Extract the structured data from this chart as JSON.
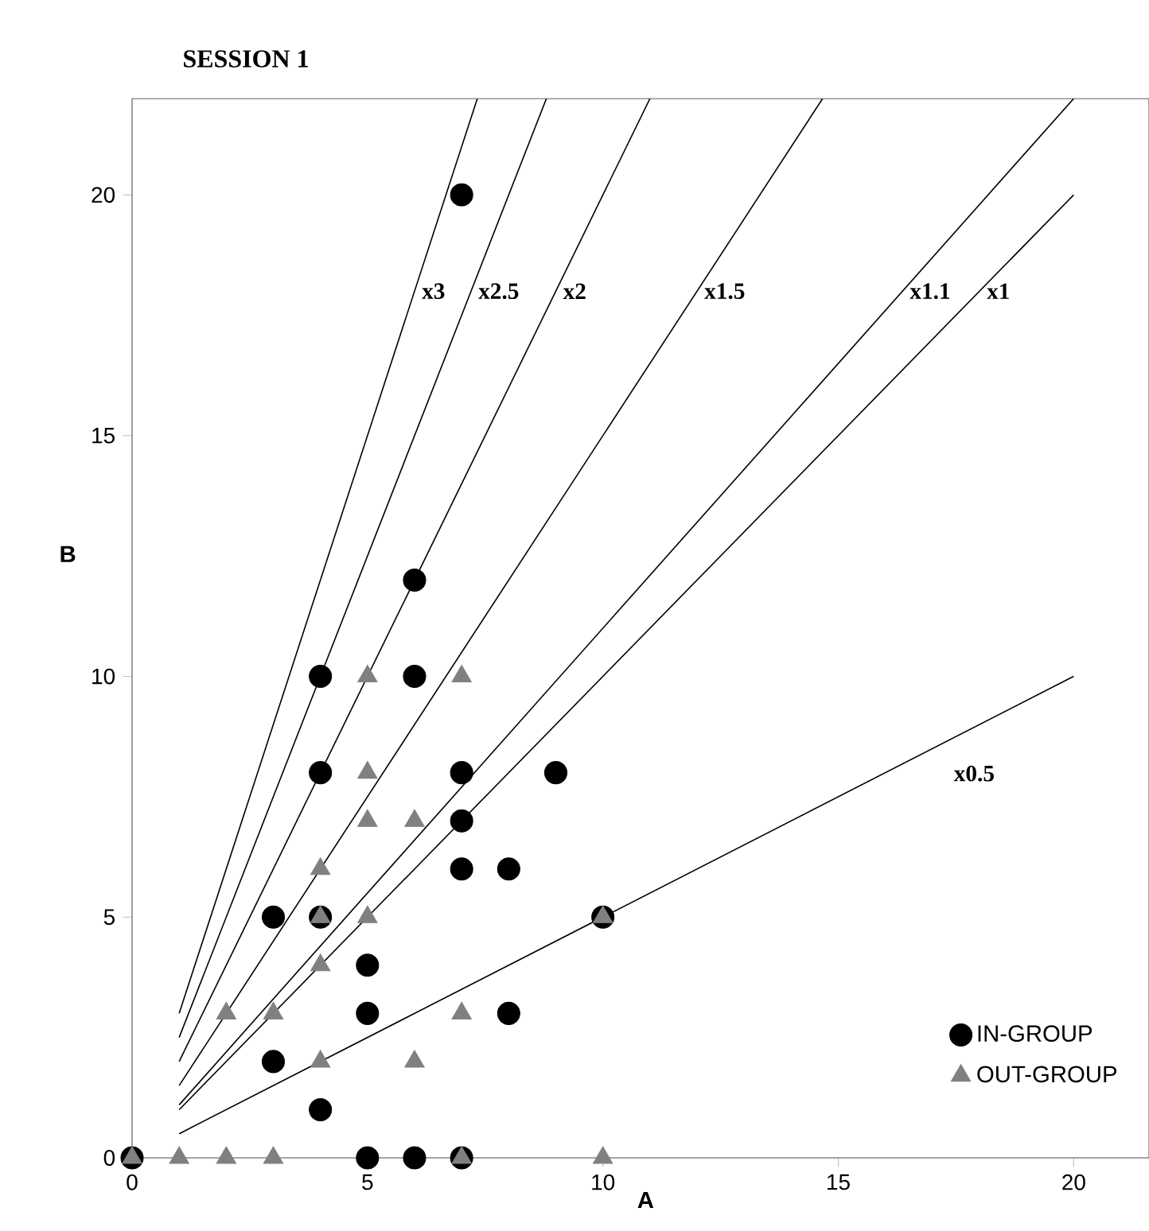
{
  "chart_data": {
    "type": "scatter",
    "title": "SESSION 1",
    "xlabel": "A",
    "ylabel": "B",
    "xlim": [
      0,
      21.6
    ],
    "ylim": [
      0,
      22
    ],
    "xticks": [
      0,
      5,
      10,
      15,
      20
    ],
    "yticks": [
      0,
      5,
      10,
      15,
      20
    ],
    "legend": "bottom right",
    "series": [
      {
        "name": "x3",
        "type": "line",
        "color": "#000000",
        "marker": "none",
        "x": [
          1,
          7.333
        ],
        "values": [
          3,
          22
        ]
      },
      {
        "name": "x2.5",
        "type": "line",
        "color": "#000000",
        "marker": "none",
        "x": [
          1,
          8.8
        ],
        "values": [
          2.5,
          22
        ]
      },
      {
        "name": "x2",
        "type": "line",
        "color": "#000000",
        "marker": "none",
        "x": [
          1,
          11
        ],
        "values": [
          2,
          22
        ]
      },
      {
        "name": "x1.5",
        "type": "line",
        "color": "#000000",
        "marker": "none",
        "x": [
          1,
          14.667
        ],
        "values": [
          1.5,
          22
        ]
      },
      {
        "name": "x1.1",
        "type": "line",
        "color": "#000000",
        "marker": "none",
        "x": [
          1,
          20
        ],
        "values": [
          1.1,
          22
        ]
      },
      {
        "name": "x1",
        "type": "line",
        "color": "#000000",
        "marker": "none",
        "x": [
          1,
          20
        ],
        "values": [
          1,
          20
        ]
      },
      {
        "name": "x0.5",
        "type": "line",
        "color": "#000000",
        "marker": "none",
        "x": [
          1,
          20
        ],
        "values": [
          0.5,
          10
        ]
      },
      {
        "name": "IN-GROUP",
        "color": "#000000",
        "marker": "circle",
        "x": [
          0,
          4,
          6,
          4,
          7,
          9,
          7,
          7,
          8,
          3,
          4,
          10,
          5,
          5,
          8,
          3,
          4,
          5,
          6,
          7,
          7,
          6
        ],
        "values": [
          0,
          10,
          10,
          8,
          8,
          8,
          7,
          6,
          6,
          5,
          5,
          5,
          4,
          3,
          3,
          2,
          1,
          0,
          0,
          0,
          20,
          12
        ]
      },
      {
        "name": "OUT-GROUP",
        "color": "#808080",
        "marker": "triangle",
        "x": [
          0,
          1,
          2,
          3,
          7,
          10,
          5,
          7,
          5,
          5,
          6,
          4,
          4,
          5,
          10,
          4,
          2,
          3,
          7,
          6,
          4
        ],
        "values": [
          0,
          0,
          0,
          0,
          0,
          0,
          10,
          10,
          8,
          7,
          7,
          6,
          5,
          5,
          5,
          4,
          3,
          3,
          3,
          2,
          2
        ]
      }
    ]
  }
}
